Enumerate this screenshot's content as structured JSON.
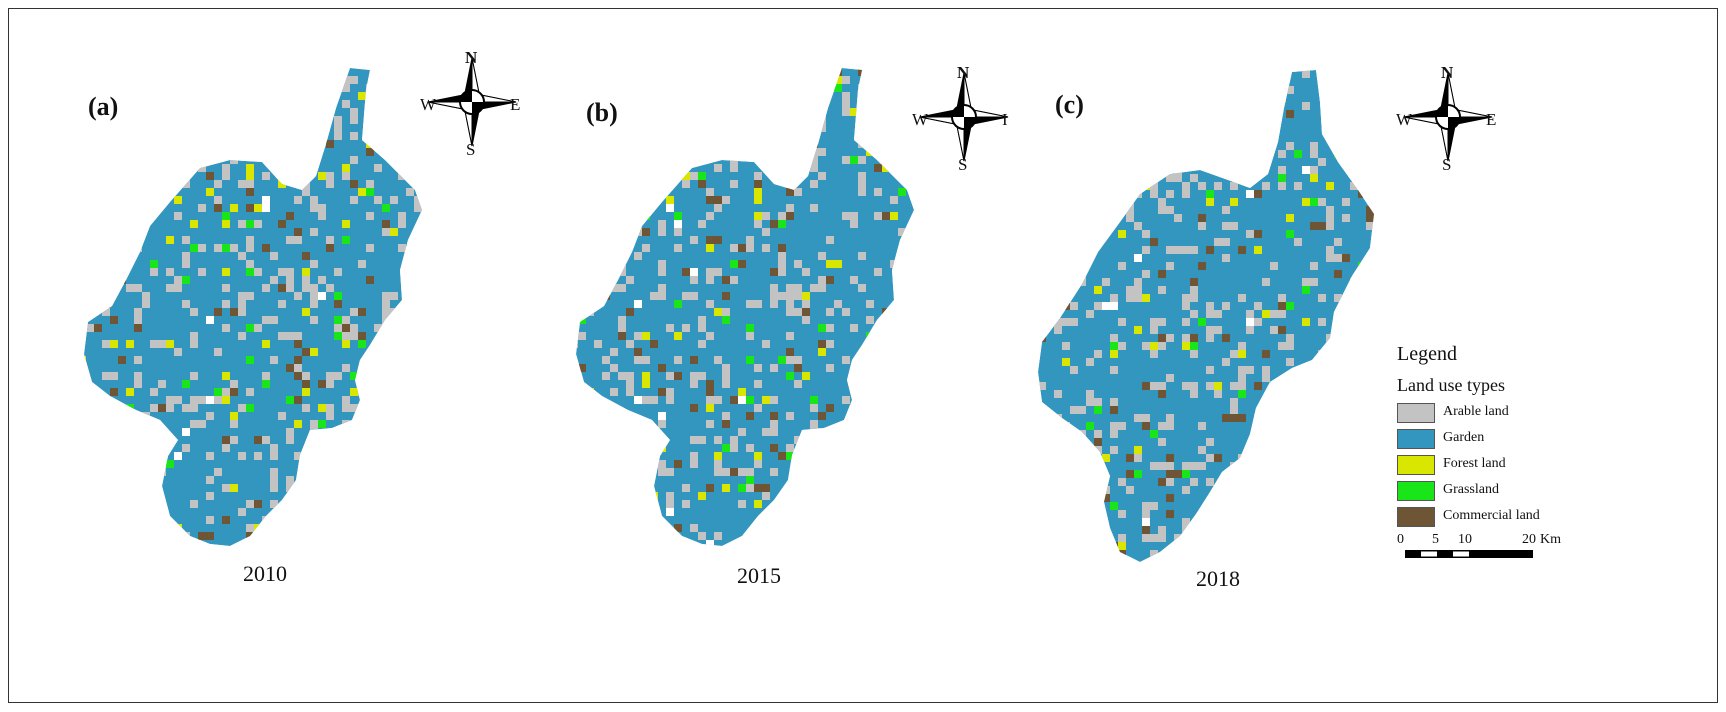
{
  "panels": [
    {
      "label": "(a)",
      "year": "2010"
    },
    {
      "label": "(b)",
      "year": "2015"
    },
    {
      "label": "(c)",
      "year": "2018"
    }
  ],
  "compass": {
    "n": "N",
    "s": "S",
    "e": "E",
    "w": "W",
    "e_partial": "I"
  },
  "legend": {
    "title": "Legend",
    "subtitle": "Land use types",
    "items": [
      {
        "label": "Arable land",
        "color": "#c3c3c3"
      },
      {
        "label": "Garden",
        "color": "#3396bf"
      },
      {
        "label": "Forest land",
        "color": "#d8e600"
      },
      {
        "label": "Grassland",
        "color": "#19e619"
      },
      {
        "label": "Commercial land",
        "color": "#6e5535"
      }
    ]
  },
  "scale": {
    "ticks": [
      "0",
      "5",
      "10",
      "20"
    ],
    "unit": "Km"
  }
}
